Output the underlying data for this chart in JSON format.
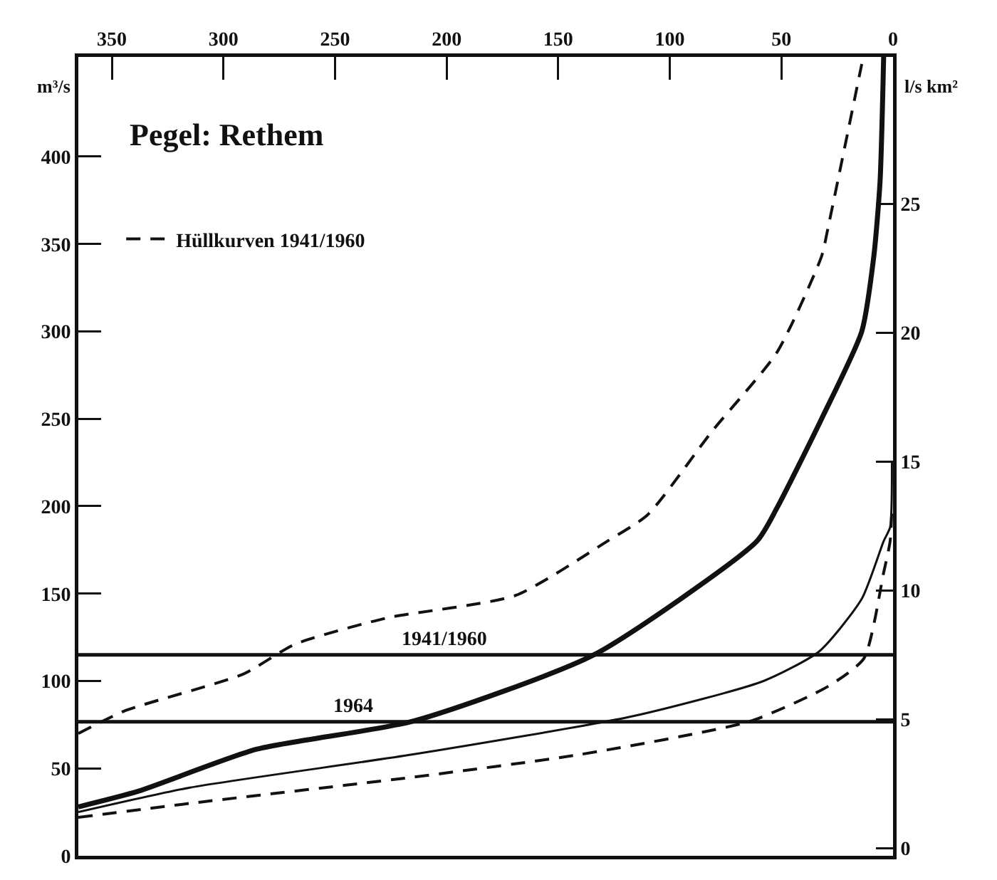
{
  "chart_data": {
    "type": "line",
    "title": "Pegel: Rethem",
    "ylabel": "m³/s",
    "y2label": "l/s km²",
    "xlim": [
      365,
      0
    ],
    "xticks": [
      350,
      300,
      250,
      200,
      150,
      100,
      50,
      0
    ],
    "ylim": [
      0,
      457
    ],
    "yticks": [
      0,
      50,
      100,
      150,
      200,
      250,
      300,
      350,
      400
    ],
    "y2lim": [
      -0.3,
      30.7
    ],
    "y2ticks": [
      0,
      5,
      10,
      15,
      20,
      25
    ],
    "grid": false,
    "legend": "top left",
    "marker": "none",
    "series": [
      {
        "name": "Hüllkurven 1941/1960",
        "color": "#111111",
        "line_style": "dashed",
        "x": [
          365,
          344,
          291,
          268,
          227,
          169,
          128,
          110,
          81,
          52,
          32,
          29,
          14
        ],
        "values": [
          70,
          83,
          104,
          121,
          136,
          149,
          180,
          195,
          243,
          288,
          343,
          360,
          453
        ]
      },
      {
        "color": "#111111",
        "line_style": "solid",
        "x": [
          365,
          338,
          285,
          215,
          134,
          61,
          52,
          32,
          14,
          8.6,
          5.8,
          4.2
        ],
        "values": [
          28,
          37,
          61,
          77,
          115,
          180,
          199,
          250,
          300,
          343,
          386,
          457
        ]
      },
      {
        "color": "#111111",
        "line_style": "solid",
        "x": [
          365,
          315,
          215,
          116,
          58,
          33,
          14,
          4.2,
          1.3,
          0.5
        ],
        "values": [
          25,
          39,
          58,
          80,
          100,
          117,
          147,
          180,
          188,
          225
        ]
      },
      {
        "color": "#111111",
        "line_style": "dashed",
        "x": [
          365,
          315,
          215,
          140,
          64,
          29,
          13,
          4.2,
          1.3,
          0.5
        ],
        "values": [
          22,
          30,
          45,
          58,
          77,
          97,
          113,
          162,
          180,
          200
        ]
      },
      {
        "name": "1941/1960",
        "color": "#111111",
        "line_style": "solid",
        "axis": "y2",
        "x": [
          365,
          0
        ],
        "values": [
          7.5,
          7.5
        ]
      },
      {
        "name": "1964",
        "color": "#111111",
        "line_style": "solid",
        "axis": "y2",
        "x": [
          365,
          0
        ],
        "values": [
          4.9,
          4.9
        ]
      }
    ]
  }
}
